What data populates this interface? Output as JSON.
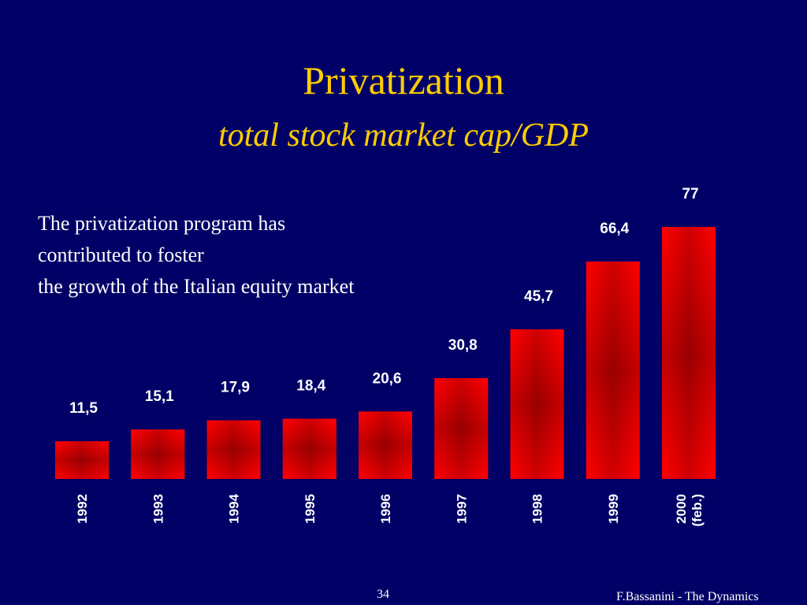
{
  "slide": {
    "title": "Privatization",
    "subtitle": "total stock market cap/GDP",
    "body_lines": [
      "The privatization program has",
      "contributed to foster",
      "the growth of the Italian equity market"
    ],
    "page_number": "34",
    "footer": "F.Bassanini - The Dynamics"
  },
  "colors": {
    "background": "#000066",
    "title": "#ffcc00",
    "bar_edge": "#ff0000",
    "bar_center": "#990000",
    "text": "#ffffff"
  },
  "chart_data": {
    "type": "bar",
    "title": "",
    "xlabel": "",
    "ylabel": "",
    "categories": [
      "1992",
      "1993",
      "1994",
      "1995",
      "1996",
      "1997",
      "1998",
      "1999",
      "2000 (feb.)"
    ],
    "category_label_lines": [
      [
        "1992"
      ],
      [
        "1993"
      ],
      [
        "1994"
      ],
      [
        "1995"
      ],
      [
        "1996"
      ],
      [
        "1997"
      ],
      [
        "1998"
      ],
      [
        "1999"
      ],
      [
        "2000",
        "(feb.)"
      ]
    ],
    "values": [
      11.5,
      15.1,
      17.9,
      18.4,
      20.6,
      30.8,
      45.7,
      66.4,
      77
    ],
    "value_labels": [
      "11,5",
      "15,1",
      "17,9",
      "18,4",
      "20,6",
      "30,8",
      "45,7",
      "66,4",
      "77"
    ],
    "ylim": [
      0,
      80
    ],
    "grid": false,
    "legend": "none"
  }
}
